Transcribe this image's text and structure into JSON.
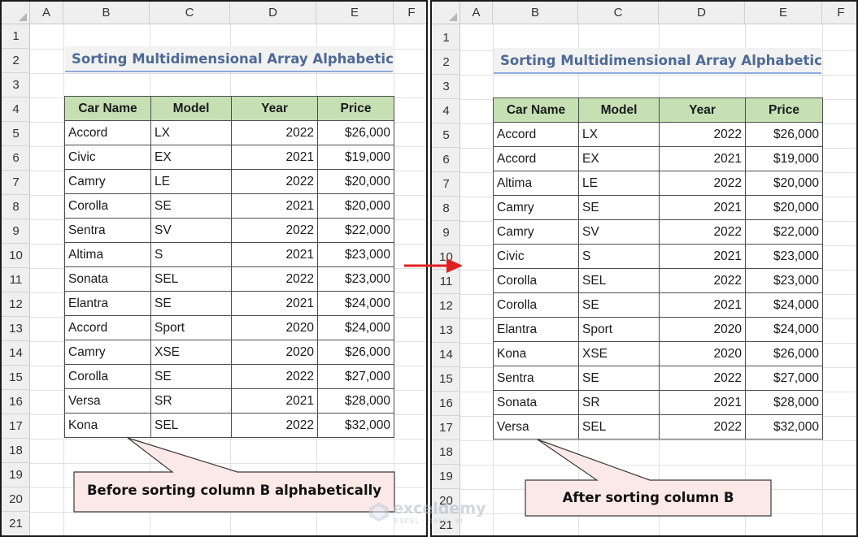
{
  "columns": [
    "A",
    "B",
    "C",
    "D",
    "E",
    "F"
  ],
  "rows": [
    "1",
    "2",
    "3",
    "4",
    "5",
    "6",
    "7",
    "8",
    "9",
    "10",
    "11",
    "12",
    "13",
    "14",
    "15",
    "16",
    "17",
    "18",
    "19",
    "20",
    "21"
  ],
  "title": "Sorting Multidimensional Array Alphabetically",
  "headers": [
    "Car Name",
    "Model",
    "Year",
    "Price"
  ],
  "before": {
    "rows": [
      [
        "Accord",
        "LX",
        "2022",
        "$26,000"
      ],
      [
        "Civic",
        "EX",
        "2021",
        "$19,000"
      ],
      [
        "Camry",
        "LE",
        "2022",
        "$20,000"
      ],
      [
        "Corolla",
        "SE",
        "2021",
        "$20,000"
      ],
      [
        "Sentra",
        "SV",
        "2022",
        "$22,000"
      ],
      [
        "Altima",
        "S",
        "2021",
        "$23,000"
      ],
      [
        "Sonata",
        "SEL",
        "2022",
        "$23,000"
      ],
      [
        "Elantra",
        "SE",
        "2021",
        "$24,000"
      ],
      [
        "Accord",
        "Sport",
        "2020",
        "$24,000"
      ],
      [
        "Camry",
        "XSE",
        "2020",
        "$26,000"
      ],
      [
        "Corolla",
        "SE",
        "2022",
        "$27,000"
      ],
      [
        "Versa",
        "SR",
        "2021",
        "$28,000"
      ],
      [
        "Kona",
        "SEL",
        "2022",
        "$32,000"
      ]
    ],
    "callout": "Before sorting column B alphabetically"
  },
  "after": {
    "rows": [
      [
        "Accord",
        "LX",
        "2022",
        "$26,000"
      ],
      [
        "Accord",
        "EX",
        "2021",
        "$19,000"
      ],
      [
        "Altima",
        "LE",
        "2022",
        "$20,000"
      ],
      [
        "Camry",
        "SE",
        "2021",
        "$20,000"
      ],
      [
        "Camry",
        "SV",
        "2022",
        "$22,000"
      ],
      [
        "Civic",
        "S",
        "2021",
        "$23,000"
      ],
      [
        "Corolla",
        "SEL",
        "2022",
        "$23,000"
      ],
      [
        "Corolla",
        "SE",
        "2021",
        "$24,000"
      ],
      [
        "Elantra",
        "Sport",
        "2020",
        "$24,000"
      ],
      [
        "Kona",
        "XSE",
        "2020",
        "$26,000"
      ],
      [
        "Sentra",
        "SE",
        "2022",
        "$27,000"
      ],
      [
        "Sonata",
        "SR",
        "2021",
        "$28,000"
      ],
      [
        "Versa",
        "SEL",
        "2022",
        "$32,000"
      ]
    ],
    "callout": "After sorting column B"
  },
  "arrow_color": "#e02020",
  "header_fill": "#c6e0b4",
  "title_color": "#4e6a95",
  "watermark": {
    "name": "exceldemy",
    "tagline": "EXCEL · DATA · BI"
  }
}
